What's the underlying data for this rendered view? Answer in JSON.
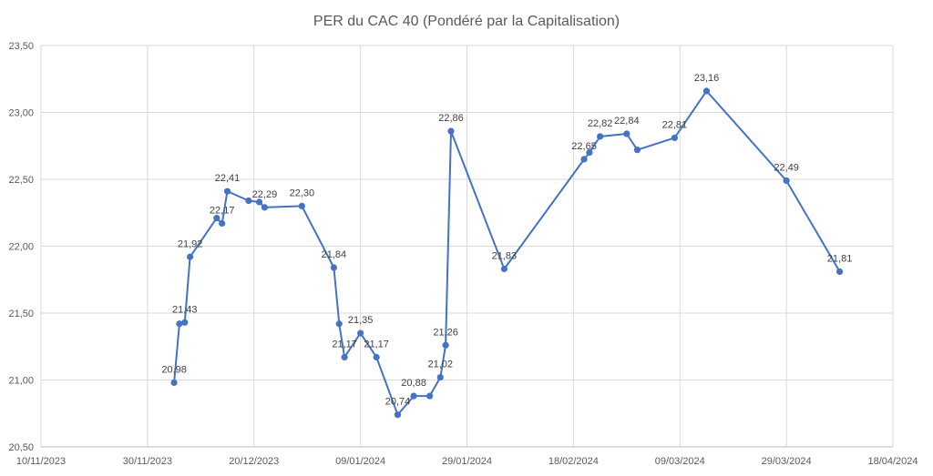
{
  "chart_data": {
    "type": "line",
    "title": "PER du CAC 40 (Pondéré par la Capitalisation)",
    "xlabel": "",
    "ylabel": "",
    "x_axis": {
      "min": "2023-11-10",
      "max": "2024-04-18",
      "ticks": [
        "10/11/2023",
        "30/11/2023",
        "20/12/2023",
        "09/01/2024",
        "29/01/2024",
        "18/02/2024",
        "09/03/2024",
        "29/03/2024",
        "18/04/2024"
      ]
    },
    "y_axis": {
      "min": 20.5,
      "max": 23.5,
      "ticks": [
        "20,50",
        "21,00",
        "21,50",
        "22,00",
        "22,50",
        "23,00",
        "23,50"
      ]
    },
    "grid": true,
    "color": "#4472c4",
    "points": [
      {
        "date": "2023-12-05",
        "value": 20.98,
        "label": "20,98"
      },
      {
        "date": "2023-12-06",
        "value": 21.42,
        "label": ""
      },
      {
        "date": "2023-12-07",
        "value": 21.43,
        "label": "21,43"
      },
      {
        "date": "2023-12-08",
        "value": 21.92,
        "label": "21,92"
      },
      {
        "date": "2023-12-13",
        "value": 22.21,
        "label": ""
      },
      {
        "date": "2023-12-14",
        "value": 22.17,
        "label": "22,17"
      },
      {
        "date": "2023-12-15",
        "value": 22.41,
        "label": "22,41"
      },
      {
        "date": "2023-12-19",
        "value": 22.34,
        "label": ""
      },
      {
        "date": "2023-12-21",
        "value": 22.33,
        "label": ""
      },
      {
        "date": "2023-12-22",
        "value": 22.29,
        "label": "22,29"
      },
      {
        "date": "2023-12-29",
        "value": 22.3,
        "label": "22,30"
      },
      {
        "date": "2024-01-04",
        "value": 21.84,
        "label": "21,84"
      },
      {
        "date": "2024-01-05",
        "value": 21.42,
        "label": ""
      },
      {
        "date": "2024-01-06",
        "value": 21.17,
        "label": "21,17"
      },
      {
        "date": "2024-01-09",
        "value": 21.35,
        "label": "21,35"
      },
      {
        "date": "2024-01-12",
        "value": 21.17,
        "label": "21,17"
      },
      {
        "date": "2024-01-16",
        "value": 20.74,
        "label": "20,74"
      },
      {
        "date": "2024-01-19",
        "value": 20.88,
        "label": "20,88"
      },
      {
        "date": "2024-01-22",
        "value": 20.88,
        "label": ""
      },
      {
        "date": "2024-01-24",
        "value": 21.02,
        "label": "21,02"
      },
      {
        "date": "2024-01-25",
        "value": 21.26,
        "label": "21,26"
      },
      {
        "date": "2024-01-26",
        "value": 22.86,
        "label": "22,86"
      },
      {
        "date": "2024-02-05",
        "value": 21.83,
        "label": "21,83"
      },
      {
        "date": "2024-02-20",
        "value": 22.65,
        "label": "22,65"
      },
      {
        "date": "2024-02-21",
        "value": 22.7,
        "label": ""
      },
      {
        "date": "2024-02-23",
        "value": 22.82,
        "label": "22,82"
      },
      {
        "date": "2024-02-28",
        "value": 22.84,
        "label": "22,84"
      },
      {
        "date": "2024-03-01",
        "value": 22.72,
        "label": ""
      },
      {
        "date": "2024-03-08",
        "value": 22.81,
        "label": "22,81"
      },
      {
        "date": "2024-03-14",
        "value": 23.16,
        "label": "23,16"
      },
      {
        "date": "2024-03-29",
        "value": 22.49,
        "label": "22,49"
      },
      {
        "date": "2024-04-08",
        "value": 21.81,
        "label": "21,81"
      }
    ]
  }
}
